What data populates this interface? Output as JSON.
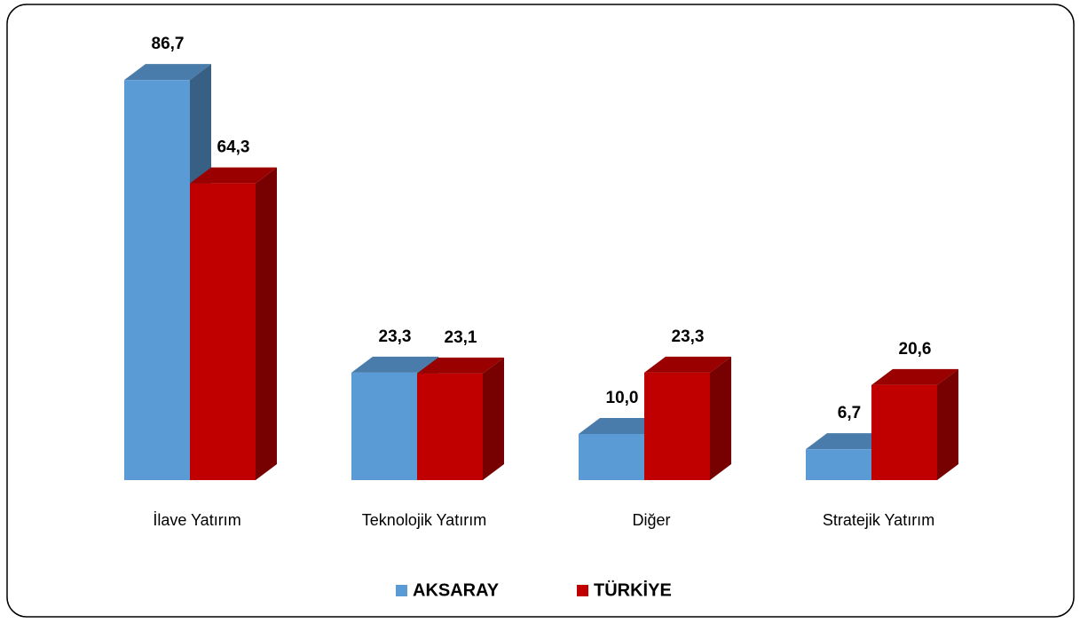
{
  "chart_data": {
    "type": "bar3d",
    "categories": [
      "İlave Yatırım",
      "Teknolojik Yatırım",
      "Diğer",
      "Stratejik Yatırım"
    ],
    "series": [
      {
        "name": "AKSARAY",
        "color": "#5b9bd5",
        "values": [
          86.7,
          23.3,
          10.0,
          6.7
        ],
        "value_labels": [
          "86,7",
          "23,3",
          "10,0",
          "6,7"
        ]
      },
      {
        "name": "TÜRKİYE",
        "color": "#c00000",
        "values": [
          64.3,
          23.1,
          23.3,
          20.6
        ],
        "value_labels": [
          "64,3",
          "23,1",
          "23,3",
          "20,6"
        ]
      }
    ],
    "legend": "bottom"
  }
}
